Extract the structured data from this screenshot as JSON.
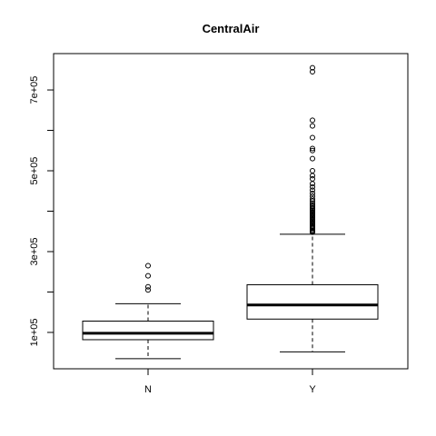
{
  "chart_data": {
    "type": "boxplot",
    "title": "CentralAir",
    "xlabel": "",
    "ylabel": "",
    "categories": [
      "N",
      "Y"
    ],
    "ylim": [
      10000,
      790000
    ],
    "y_ticks": [
      {
        "value": 100000,
        "label": "1e+05"
      },
      {
        "value": 300000,
        "label": "3e+05"
      },
      {
        "value": 500000,
        "label": "5e+05"
      },
      {
        "value": 700000,
        "label": "7e+05"
      }
    ],
    "y_minor_ticks": [
      200000,
      400000,
      600000
    ],
    "boxes": [
      {
        "category": "N",
        "whisker_low": 34900,
        "q1": 82000,
        "median": 98000,
        "q3": 128000,
        "whisker_high": 171000,
        "outliers": [
          205000,
          213000,
          240000,
          265000
        ]
      },
      {
        "category": "Y",
        "whisker_low": 52000,
        "q1": 133000,
        "median": 168000,
        "q3": 218000,
        "whisker_high": 343000,
        "outliers": [
          348000,
          350000,
          352000,
          355000,
          358000,
          360000,
          363000,
          366000,
          369000,
          372000,
          375000,
          378000,
          381000,
          384000,
          387000,
          390000,
          393000,
          396000,
          399000,
          402000,
          405000,
          408000,
          412000,
          416000,
          420000,
          425000,
          430000,
          437000,
          444000,
          452000,
          460000,
          468000,
          480000,
          488000,
          500000,
          530000,
          550000,
          555000,
          582000,
          611000,
          625000,
          745000,
          755000
        ]
      }
    ],
    "grid": false,
    "legend": "none"
  }
}
